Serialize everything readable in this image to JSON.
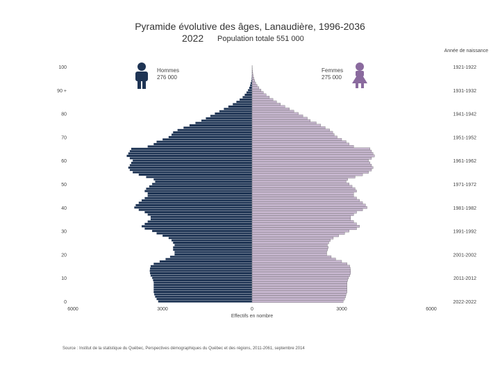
{
  "header": {
    "title": "Pyramide évolutive des âges, Lanaudière, 1996-2036",
    "year": "2022",
    "total_label": "Population totale 551 000"
  },
  "legend": {
    "men_label": "Hommes",
    "men_total": "276 000",
    "women_label": "Femmes",
    "women_total": "275 000",
    "men_color": "#1e3454",
    "women_color": "#c6b6ce",
    "men_icon": "man-icon",
    "women_icon": "woman-icon"
  },
  "source": "Source : Institut de la statistique du Québec, Perspectives démographiques du Québec et des régions, 2011-2061, septembre 2014",
  "chart_data": {
    "type": "bar",
    "orientation": "horizontal-pyramid",
    "x_label": "Effectifs en nombre",
    "birth_year_label": "Année de naissance",
    "x_ticks": [
      "6000",
      "3000",
      "0",
      "3000",
      "6000"
    ],
    "x_range": [
      -6000,
      6000
    ],
    "age_range": [
      0,
      100
    ],
    "age_ticks": [
      {
        "age": 0,
        "label": "0"
      },
      {
        "age": 10,
        "label": "10"
      },
      {
        "age": 20,
        "label": "20"
      },
      {
        "age": 30,
        "label": "30"
      },
      {
        "age": 40,
        "label": "40"
      },
      {
        "age": 50,
        "label": "50"
      },
      {
        "age": 60,
        "label": "60"
      },
      {
        "age": 70,
        "label": "70"
      },
      {
        "age": 80,
        "label": "80"
      },
      {
        "age": 90,
        "label": "90 +"
      },
      {
        "age": 100,
        "label": "100"
      }
    ],
    "cohort_labels": [
      {
        "age": 100,
        "label": "1921-1922"
      },
      {
        "age": 90,
        "label": "1931-1932"
      },
      {
        "age": 80,
        "label": "1941-1942"
      },
      {
        "age": 70,
        "label": "1951-1952"
      },
      {
        "age": 60,
        "label": "1961-1962"
      },
      {
        "age": 50,
        "label": "1971-1972"
      },
      {
        "age": 40,
        "label": "1981-1982"
      },
      {
        "age": 30,
        "label": "1991-1992"
      },
      {
        "age": 20,
        "label": "2001-2002"
      },
      {
        "age": 10,
        "label": "2011-2012"
      },
      {
        "age": 0,
        "label": "2022-2022"
      }
    ],
    "ages": [
      0,
      1,
      2,
      3,
      4,
      5,
      6,
      7,
      8,
      9,
      10,
      11,
      12,
      13,
      14,
      15,
      16,
      17,
      18,
      19,
      20,
      21,
      22,
      23,
      24,
      25,
      26,
      27,
      28,
      29,
      30,
      31,
      32,
      33,
      34,
      35,
      36,
      37,
      38,
      39,
      40,
      41,
      42,
      43,
      44,
      45,
      46,
      47,
      48,
      49,
      50,
      51,
      52,
      53,
      54,
      55,
      56,
      57,
      58,
      59,
      60,
      61,
      62,
      63,
      64,
      65,
      66,
      67,
      68,
      69,
      70,
      71,
      72,
      73,
      74,
      75,
      76,
      77,
      78,
      79,
      80,
      81,
      82,
      83,
      84,
      85,
      86,
      87,
      88,
      89,
      90,
      91,
      92,
      93,
      94,
      95,
      96,
      97,
      98,
      99,
      100
    ],
    "series": [
      {
        "name": "Hommes",
        "values": [
          3150,
          3200,
          3250,
          3280,
          3300,
          3300,
          3300,
          3300,
          3300,
          3320,
          3350,
          3400,
          3420,
          3430,
          3420,
          3400,
          3300,
          3100,
          2900,
          2750,
          2600,
          2600,
          2650,
          2650,
          2600,
          2650,
          2700,
          2800,
          3000,
          3200,
          3350,
          3600,
          3700,
          3600,
          3500,
          3400,
          3400,
          3500,
          3600,
          3800,
          3950,
          3900,
          3800,
          3700,
          3600,
          3500,
          3500,
          3600,
          3550,
          3450,
          3350,
          3250,
          3300,
          3550,
          3800,
          4000,
          4100,
          4150,
          4100,
          4050,
          4000,
          4100,
          4200,
          4150,
          4100,
          4050,
          3500,
          3300,
          3200,
          3000,
          2800,
          2700,
          2650,
          2500,
          2300,
          2100,
          1900,
          1700,
          1550,
          1400,
          1250,
          1100,
          950,
          800,
          650,
          530,
          420,
          320,
          250,
          190,
          140,
          100,
          70,
          50,
          30,
          20,
          12,
          8,
          5,
          3,
          2
        ]
      },
      {
        "name": "Femmes",
        "values": [
          3050,
          3100,
          3130,
          3150,
          3180,
          3180,
          3180,
          3180,
          3180,
          3200,
          3230,
          3270,
          3300,
          3300,
          3290,
          3270,
          3180,
          3000,
          2800,
          2650,
          2500,
          2500,
          2530,
          2550,
          2520,
          2570,
          2620,
          2720,
          2900,
          3100,
          3250,
          3500,
          3600,
          3500,
          3400,
          3300,
          3300,
          3400,
          3500,
          3700,
          3850,
          3800,
          3700,
          3600,
          3500,
          3400,
          3400,
          3500,
          3450,
          3350,
          3250,
          3150,
          3200,
          3450,
          3700,
          3900,
          4000,
          4050,
          4000,
          3950,
          3900,
          4000,
          4100,
          4050,
          4000,
          3950,
          3400,
          3250,
          3150,
          3000,
          2850,
          2750,
          2700,
          2600,
          2450,
          2300,
          2150,
          1950,
          1850,
          1700,
          1550,
          1400,
          1250,
          1100,
          950,
          820,
          700,
          580,
          470,
          380,
          300,
          230,
          170,
          120,
          85,
          60,
          40,
          25,
          15,
          10,
          6
        ]
      }
    ]
  }
}
